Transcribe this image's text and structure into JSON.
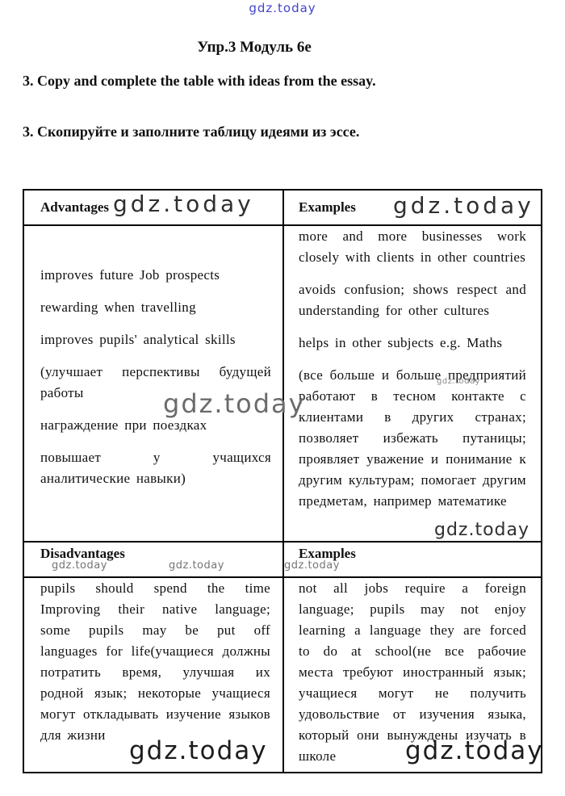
{
  "page": {
    "title": "Упр.3 Модуль 6е",
    "instruction_en": "3. Copy and complete the table with ideas from the essay.",
    "instruction_ru": "3. Скопируйте и заполните таблицу идеями из эссе."
  },
  "watermark": {
    "text": "gdz.today",
    "accent_blue": "#4343cd",
    "gray": "#6b6b6b",
    "dark": "#1c1c1c"
  },
  "table": {
    "advantages": {
      "header": "Advantages",
      "items": [
        "improves future Job prospects",
        "rewarding when travelling",
        "improves pupils' analytical skills",
        "(улучшает перспективы будущей работы",
        "награждение при поездках",
        "повышает у учащихся аналитические навыки)"
      ]
    },
    "examples1": {
      "header": "Examples",
      "items": [
        "more and more businesses work closely with clients in other countries",
        "avoids confusion; shows respect and understanding for other cultures",
        "helps in other subjects e.g. Maths",
        "(все больше и больше предприятий работают в тесном контакте с клиентами в других странах; позволяет избежать путаницы; проявляет уважение и понимание к другим культурам; помогает другим предметам, например математике"
      ]
    },
    "disadvantages": {
      "header": "Disadvantages",
      "items": [
        "pupils should spend the time Improving their native language; some pupils may be put off languages for life(учащиеся должны потратить время, улучшая их родной язык; некоторые учащиеся могут откладывать изучение языков для жизни"
      ]
    },
    "examples2": {
      "header": "Examples",
      "items": [
        "not all jobs require a foreign language; pupils may not enjoy learning a language they are forced to do at school(не все рабочие места требуют иностранный язык; учащиеся могут не получить удовольствие от изучения языка, который они вынуждены изучать в школе"
      ]
    }
  }
}
